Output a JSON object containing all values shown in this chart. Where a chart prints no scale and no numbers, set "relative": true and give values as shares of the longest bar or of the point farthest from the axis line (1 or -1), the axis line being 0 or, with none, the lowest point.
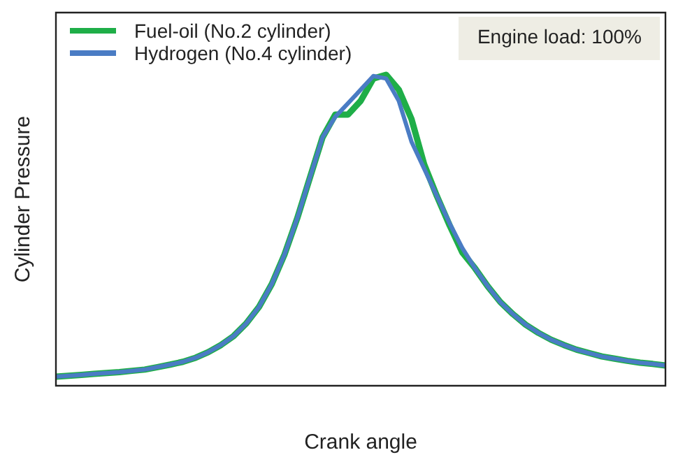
{
  "chart_data": {
    "type": "line",
    "relative": true,
    "xlabel": "Crank angle",
    "ylabel": "Cylinder Pressure",
    "legend": "top left",
    "annotations": [
      "Engine load: 100%"
    ],
    "categories": [
      null,
      null,
      null,
      null,
      null,
      null,
      null,
      null,
      null,
      null,
      null,
      null,
      null,
      null,
      null,
      null,
      null,
      null,
      null,
      null,
      null,
      null,
      null,
      null,
      null,
      null,
      null,
      null,
      null,
      null,
      null,
      null,
      null,
      null,
      null,
      null,
      null,
      null,
      null,
      null,
      null,
      null,
      null,
      null,
      null,
      null,
      null,
      null,
      null
    ],
    "series": [
      {
        "name": "Fuel-oil (No.2 cylinder)",
        "color": "#1fae48",
        "values": [
          0.029,
          0.032,
          0.035,
          0.038,
          0.041,
          0.044,
          0.048,
          0.052,
          0.06,
          0.068,
          0.077,
          0.09,
          0.108,
          0.131,
          0.16,
          0.201,
          0.254,
          0.327,
          0.422,
          0.538,
          0.669,
          0.799,
          0.872,
          0.872,
          0.916,
          0.988,
          1,
          0.952,
          0.858,
          0.712,
          0.61,
          0.516,
          0.429,
          0.378,
          0.32,
          0.269,
          0.23,
          0.196,
          0.17,
          0.148,
          0.131,
          0.116,
          0.105,
          0.094,
          0.087,
          0.08,
          0.074,
          0.07,
          0.065
        ]
      },
      {
        "name": "Hydrogen (No.4 cylinder)",
        "color": "#4a7cc4",
        "values": [
          0.029,
          0.032,
          0.035,
          0.038,
          0.041,
          0.044,
          0.048,
          0.052,
          0.06,
          0.068,
          0.077,
          0.09,
          0.108,
          0.131,
          0.16,
          0.201,
          0.254,
          0.327,
          0.422,
          0.538,
          0.669,
          0.799,
          0.865,
          0.908,
          0.952,
          0.996,
          0.988,
          0.916,
          0.785,
          0.698,
          0.61,
          0.523,
          0.443,
          0.378,
          0.32,
          0.269,
          0.23,
          0.196,
          0.17,
          0.148,
          0.131,
          0.116,
          0.105,
          0.094,
          0.087,
          0.08,
          0.074,
          0.07,
          0.065
        ]
      }
    ]
  }
}
